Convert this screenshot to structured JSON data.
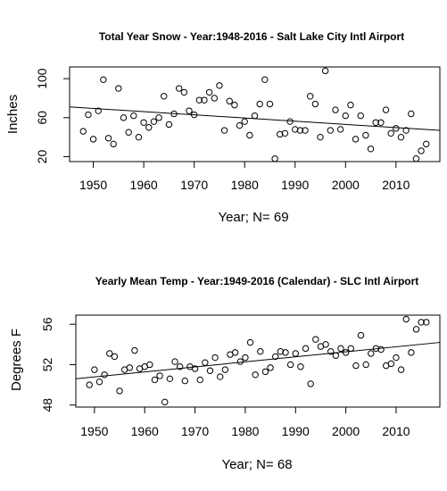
{
  "chart_data": [
    {
      "type": "scatter",
      "title": "Total Year Snow - Year:1948-2016 - Salt Lake City Intl Airport",
      "xlabel": "Year; N= 69",
      "ylabel": "Inches",
      "xlim": [
        1945.3,
        2018.7
      ],
      "ylim": [
        15,
        112
      ],
      "xticks": [
        1950,
        1960,
        1970,
        1980,
        1990,
        2000,
        2010
      ],
      "yticks": [
        20,
        60,
        100
      ],
      "ytick_labels_rotated": true,
      "grid": false,
      "legend": "none",
      "trendline": {
        "x": [
          1945.3,
          2018.7
        ],
        "y": [
          71,
          47
        ]
      },
      "x": [
        1948,
        1949,
        1950,
        1951,
        1952,
        1953,
        1954,
        1955,
        1956,
        1957,
        1958,
        1959,
        1960,
        1961,
        1962,
        1963,
        1964,
        1965,
        1966,
        1967,
        1968,
        1969,
        1970,
        1971,
        1972,
        1973,
        1974,
        1975,
        1976,
        1977,
        1978,
        1979,
        1980,
        1981,
        1982,
        1983,
        1984,
        1985,
        1986,
        1987,
        1988,
        1989,
        1990,
        1991,
        1992,
        1993,
        1994,
        1995,
        1996,
        1997,
        1998,
        1999,
        2000,
        2001,
        2002,
        2003,
        2004,
        2005,
        2006,
        2007,
        2008,
        2009,
        2010,
        2011,
        2012,
        2013,
        2014,
        2015,
        2016
      ],
      "y": [
        46,
        63,
        38,
        67,
        99,
        39,
        33,
        90,
        60,
        45,
        62,
        40,
        55,
        50,
        56,
        60,
        82,
        53,
        64,
        90,
        86,
        67,
        63,
        78,
        78,
        86,
        80,
        93,
        47,
        77,
        73,
        52,
        56,
        42,
        62,
        74,
        99,
        74,
        18,
        43,
        44,
        56,
        48,
        47,
        47,
        82,
        74,
        40,
        108,
        47,
        68,
        48,
        62,
        73,
        38,
        62,
        42,
        28,
        55,
        55,
        68,
        44,
        49,
        40,
        47,
        64,
        18,
        26,
        33
      ]
    },
    {
      "type": "scatter",
      "title": "Yearly Mean Temp - Year:1949-2016 (Calendar) - SLC Intl Airport",
      "xlabel": "Year; N= 68",
      "ylabel": "Degrees F",
      "xlim": [
        1946.3,
        2018.7
      ],
      "ylim": [
        47.8,
        56.9
      ],
      "xticks": [
        1950,
        1960,
        1970,
        1980,
        1990,
        2000,
        2010
      ],
      "yticks": [
        48,
        52,
        56
      ],
      "ytick_labels_rotated": true,
      "grid": false,
      "legend": "none",
      "trendline": {
        "x": [
          1946.3,
          2018.7
        ],
        "y": [
          50.6,
          54.2
        ]
      },
      "x": [
        1949,
        1950,
        1951,
        1952,
        1953,
        1954,
        1955,
        1956,
        1957,
        1958,
        1959,
        1960,
        1961,
        1962,
        1963,
        1964,
        1965,
        1966,
        1967,
        1968,
        1969,
        1970,
        1971,
        1972,
        1973,
        1974,
        1975,
        1976,
        1977,
        1978,
        1979,
        1980,
        1981,
        1982,
        1983,
        1984,
        1985,
        1986,
        1987,
        1988,
        1989,
        1990,
        1991,
        1992,
        1993,
        1994,
        1995,
        1996,
        1997,
        1998,
        1999,
        2000,
        2001,
        2002,
        2003,
        2004,
        2005,
        2006,
        2007,
        2008,
        2009,
        2010,
        2011,
        2012,
        2013,
        2014,
        2015,
        2016
      ],
      "y": [
        50.0,
        51.5,
        50.3,
        51.0,
        53.1,
        52.8,
        49.4,
        51.5,
        51.7,
        53.4,
        51.6,
        51.8,
        52.0,
        50.5,
        50.9,
        48.3,
        50.6,
        52.3,
        51.8,
        50.4,
        51.8,
        51.6,
        50.5,
        52.2,
        51.4,
        52.7,
        50.8,
        51.5,
        53.0,
        53.2,
        52.3,
        52.7,
        54.2,
        51.0,
        53.3,
        51.3,
        51.7,
        52.8,
        53.3,
        53.2,
        52.0,
        53.1,
        51.8,
        53.6,
        50.1,
        54.5,
        53.8,
        54.0,
        53.3,
        52.9,
        53.6,
        53.2,
        53.6,
        51.9,
        54.9,
        52.0,
        53.1,
        53.6,
        53.5,
        51.9,
        52.1,
        52.7,
        51.5,
        56.5,
        53.2,
        55.5,
        56.2,
        56.2
      ]
    }
  ]
}
